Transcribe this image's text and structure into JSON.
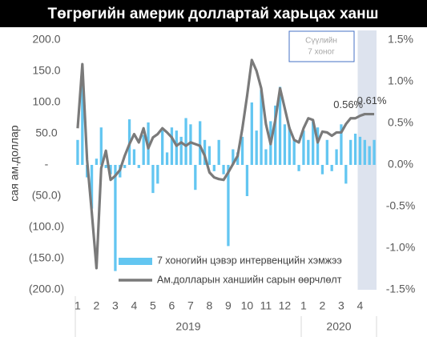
{
  "chart_data": {
    "type": "bar_line",
    "title": "Төгрөгийн америк доллартай харьцах ханш",
    "y_label": "сая ам.доллар",
    "annotation_lines": [
      "Сүүлийн",
      "7 хоног"
    ],
    "categories": [
      "1",
      null,
      null,
      null,
      "2",
      null,
      null,
      null,
      "3",
      null,
      null,
      null,
      "4",
      null,
      null,
      null,
      "5",
      null,
      null,
      null,
      "6",
      null,
      null,
      null,
      "7",
      null,
      null,
      null,
      "8",
      null,
      null,
      null,
      "9",
      null,
      null,
      null,
      "10",
      null,
      null,
      null,
      "11",
      null,
      null,
      null,
      "12",
      null,
      null,
      null,
      "1",
      null,
      null,
      null,
      "2",
      null,
      null,
      null,
      "3",
      null,
      null,
      null,
      "4",
      null,
      null,
      null
    ],
    "years": [
      "2019",
      "2020"
    ],
    "series": [
      {
        "name": "7 хоногийн цэвэр интервенцийн хэмжээ",
        "type": "bar",
        "color": "#63c6f1",
        "values": [
          40,
          130,
          -20,
          -70,
          10,
          60,
          -5,
          -15,
          -170,
          -20,
          -5,
          73,
          25,
          -5,
          48,
          68,
          -45,
          -30,
          55,
          20,
          60,
          55,
          45,
          75,
          65,
          -40,
          70,
          40,
          30,
          -10,
          40,
          -15,
          -130,
          25,
          20,
          45,
          -50,
          100,
          55,
          120,
          25,
          70,
          95,
          125,
          65,
          60,
          40,
          -10,
          55,
          40,
          70,
          60,
          -15,
          40,
          -10,
          25,
          65,
          -30,
          40,
          50,
          45,
          40,
          30,
          40
        ]
      },
      {
        "name": "Ам.долларын ханшийн сарын өөрчлөлт",
        "type": "line",
        "axis": "y2",
        "color": "#7a7a7a",
        "values": [
          0.44,
          1.21,
          0.06,
          -0.57,
          -1.24,
          -0.04,
          0.17,
          -0.18,
          -0.13,
          -0.06,
          0.11,
          0.25,
          0.37,
          0.27,
          0.44,
          0.2,
          0.33,
          0.37,
          0.44,
          0.39,
          0.33,
          0.23,
          0.27,
          0.23,
          0.27,
          0.25,
          0.23,
          0.11,
          -0.09,
          -0.15,
          -0.17,
          -0.18,
          -0.09,
          0.01,
          0.11,
          0.44,
          0.83,
          1.26,
          1.13,
          0.92,
          0.49,
          0.25,
          0.54,
          0.92,
          0.68,
          0.44,
          0.3,
          0.27,
          0.44,
          0.56,
          0.54,
          0.27,
          0.4,
          0.39,
          0.35,
          0.39,
          0.39,
          0.49,
          0.56,
          0.56,
          0.59,
          0.61,
          0.61,
          0.61
        ],
        "value_labels": [
          null,
          null,
          null,
          null,
          null,
          null,
          null,
          null,
          null,
          null,
          null,
          null,
          null,
          null,
          null,
          null,
          null,
          null,
          null,
          null,
          null,
          null,
          null,
          null,
          null,
          null,
          null,
          null,
          null,
          null,
          null,
          null,
          null,
          null,
          null,
          null,
          null,
          null,
          null,
          null,
          null,
          null,
          null,
          null,
          null,
          null,
          null,
          null,
          null,
          null,
          null,
          null,
          null,
          null,
          null,
          null,
          null,
          null,
          "0.56%",
          null,
          null,
          null,
          null,
          "0.61%"
        ]
      }
    ],
    "ylim": [
      -200,
      200
    ],
    "yticks": [
      {
        "value": 200,
        "label": "200.0"
      },
      {
        "value": 150,
        "label": "150.0"
      },
      {
        "value": 100,
        "label": "100.0"
      },
      {
        "value": 50,
        "label": "50.0"
      },
      {
        "value": 0,
        "label": "-"
      },
      {
        "value": -50,
        "label": "(50.0)"
      },
      {
        "value": -100,
        "label": "(100.0)"
      },
      {
        "value": -150,
        "label": "(150.0)"
      },
      {
        "value": -200,
        "label": "(200.0)"
      }
    ],
    "y2lim": [
      -1.5,
      1.5
    ],
    "y2ticks": [
      {
        "value": 1.5,
        "label": "1.5%"
      },
      {
        "value": 1.0,
        "label": "1.0%"
      },
      {
        "value": 0.5,
        "label": "0.5%"
      },
      {
        "value": 0,
        "label": "0.0%"
      },
      {
        "value": -0.5,
        "label": "-0.5%"
      },
      {
        "value": -1.0,
        "label": "-1.0%"
      },
      {
        "value": -1.5,
        "label": "-1.5%"
      }
    ],
    "legend": "lower left",
    "highlight_color": "#dde3ee"
  }
}
